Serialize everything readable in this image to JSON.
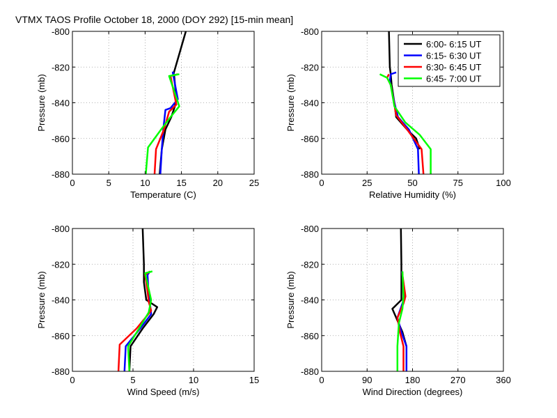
{
  "figure_title": "VTMX TAOS Profile   October 18, 2000 (DOY 292) [15-min mean]",
  "colors": {
    "6:00- 6:15 UT": "#000000",
    "6:15- 6:30 UT": "#0000ff",
    "6:30- 6:45 UT": "#ff0000",
    "6:45- 7:00 UT": "#00ff00"
  },
  "legend": {
    "placement": "top-right of relative humidity panel",
    "entries": [
      "6:00- 6:15 UT",
      "6:15- 6:30 UT",
      "6:30- 6:45 UT",
      "6:45- 7:00 UT"
    ]
  },
  "chart_data": [
    {
      "type": "line",
      "title": "",
      "xlabel": "Temperature (C)",
      "ylabel": "Pressure (mb)",
      "xlim": [
        0,
        25
      ],
      "ylim": [
        -880,
        -800
      ],
      "xticks": [
        0,
        5,
        10,
        15,
        20,
        25
      ],
      "xtick_labels": [
        "0",
        "5",
        "10",
        "15",
        "20",
        "25"
      ],
      "yticks": [
        -800,
        -820,
        -840,
        -860,
        -880
      ],
      "ytick_labels": [
        "-800",
        "-820",
        "-840",
        "-860",
        "-880"
      ],
      "grid": true,
      "series": [
        {
          "name": "6:00- 6:15 UT",
          "x": [
            12.0,
            12.3,
            12.8,
            13.6,
            14.1,
            14.3,
            14.0,
            13.9,
            15.6
          ],
          "y": [
            -880,
            -866,
            -855,
            -848,
            -842,
            -838,
            -825,
            -824,
            -800
          ]
        },
        {
          "name": "6:15- 6:30 UT",
          "x": [
            12.1,
            12.3,
            12.5,
            12.8,
            13.5,
            14.5,
            13.8,
            14.0
          ],
          "y": [
            -880,
            -866,
            -855,
            -844,
            -843,
            -838,
            -823,
            -824
          ]
        },
        {
          "name": "6:30- 6:45 UT",
          "x": [
            11.3,
            11.5,
            12.6,
            13.3,
            14.3,
            13.5,
            14.5
          ],
          "y": [
            -880,
            -866,
            -855,
            -845,
            -841,
            -825,
            -824
          ]
        },
        {
          "name": "6:45- 7:00 UT",
          "x": [
            10.1,
            10.4,
            12.2,
            13.5,
            14.7,
            13.3,
            14.7
          ],
          "y": [
            -880,
            -865,
            -855,
            -848,
            -842,
            -825,
            -824
          ]
        }
      ]
    },
    {
      "type": "line",
      "title": "",
      "xlabel": "Relative Humidity (%)",
      "ylabel": "Pressure (mb)",
      "xlim": [
        0,
        100
      ],
      "ylim": [
        -880,
        -800
      ],
      "xticks": [
        0,
        25,
        50,
        75,
        100
      ],
      "xtick_labels": [
        "0",
        "25",
        "50",
        "75",
        "100"
      ],
      "yticks": [
        -800,
        -820,
        -840,
        -860,
        -880
      ],
      "ytick_labels": [
        "-800",
        "-820",
        "-840",
        "-860",
        "-880"
      ],
      "grid": true,
      "series": [
        {
          "name": "6:00- 6:15 UT",
          "x": [
            54.0,
            52.0,
            47.0,
            41.0,
            40.0,
            38.5,
            38.0,
            37.5,
            37.0
          ],
          "y": [
            -866,
            -860,
            -855,
            -848,
            -840,
            -830,
            -824,
            -820,
            -800
          ]
        },
        {
          "name": "6:15- 6:30 UT",
          "x": [
            53.5,
            53.0,
            48.0,
            42.0,
            40.5,
            39.0,
            37.5,
            38.0,
            41.0
          ],
          "y": [
            -880,
            -866,
            -855,
            -848,
            -842,
            -835,
            -828,
            -824,
            -823
          ]
        },
        {
          "name": "6:30- 6:45 UT",
          "x": [
            56.0,
            55.0,
            47.0,
            41.0,
            40.0,
            38.0,
            36.0,
            37.0
          ],
          "y": [
            -880,
            -866,
            -855,
            -847,
            -841,
            -830,
            -826,
            -824
          ]
        },
        {
          "name": "6:45- 7:00 UT",
          "x": [
            60.0,
            60.0,
            54.0,
            46.0,
            40.0,
            38.0,
            36.0,
            32.0
          ],
          "y": [
            -880,
            -866,
            -858,
            -851,
            -842,
            -830,
            -826,
            -824
          ]
        }
      ]
    },
    {
      "type": "line",
      "title": "",
      "xlabel": "Wind Speed (m/s)",
      "ylabel": "Pressure (mb)",
      "xlim": [
        0,
        15
      ],
      "ylim": [
        -880,
        -800
      ],
      "xticks": [
        0,
        5,
        10,
        15
      ],
      "xtick_labels": [
        "0",
        "5",
        "10",
        "15"
      ],
      "yticks": [
        -800,
        -820,
        -840,
        -860,
        -880
      ],
      "ytick_labels": [
        "-800",
        "-820",
        "-840",
        "-860",
        "-880"
      ],
      "grid": true,
      "series": [
        {
          "name": "6:00- 6:15 UT",
          "x": [
            4.7,
            4.8,
            5.8,
            6.7,
            7.0,
            6.1,
            5.9,
            5.9,
            5.8
          ],
          "y": [
            -880,
            -866,
            -856,
            -848,
            -844,
            -840,
            -830,
            -820,
            -800
          ]
        },
        {
          "name": "6:15- 6:30 UT",
          "x": [
            4.3,
            4.4,
            5.6,
            6.5,
            6.4,
            6.3,
            6.2,
            6.4
          ],
          "y": [
            -880,
            -866,
            -856,
            -848,
            -842,
            -838,
            -826,
            -824
          ]
        },
        {
          "name": "6:30- 6:45 UT",
          "x": [
            3.8,
            3.9,
            5.3,
            6.5,
            6.3,
            6.2,
            6.0,
            6.4
          ],
          "y": [
            -880,
            -865,
            -856,
            -846,
            -841,
            -835,
            -826,
            -824
          ]
        },
        {
          "name": "6:45- 7:00 UT",
          "x": [
            4.7,
            4.6,
            5.5,
            6.3,
            6.5,
            6.0,
            6.6
          ],
          "y": [
            -880,
            -866,
            -856,
            -847,
            -840,
            -825,
            -824
          ]
        }
      ]
    },
    {
      "type": "line",
      "title": "",
      "xlabel": "Wind Direction (degrees)",
      "ylabel": "Pressure (mb)",
      "xlim": [
        0,
        360
      ],
      "ylim": [
        -880,
        -800
      ],
      "xticks": [
        0,
        90,
        180,
        270,
        360
      ],
      "xtick_labels": [
        "0",
        "90",
        "180",
        "270",
        "360"
      ],
      "yticks": [
        -800,
        -820,
        -840,
        -860,
        -880
      ],
      "ytick_labels": [
        "-800",
        "-820",
        "-840",
        "-860",
        "-880"
      ],
      "grid": true,
      "series": [
        {
          "name": "6:00- 6:15 UT",
          "x": [
            168,
            160,
            140,
            158,
            158,
            157
          ],
          "y": [
            -866,
            -858,
            -845,
            -840,
            -820,
            -800
          ]
        },
        {
          "name": "6:15- 6:30 UT",
          "x": [
            168,
            168,
            158,
            150,
            160,
            164,
            160,
            159
          ],
          "y": [
            -880,
            -866,
            -858,
            -850,
            -842,
            -838,
            -826,
            -824
          ]
        },
        {
          "name": "6:30- 6:45 UT",
          "x": [
            162,
            162,
            155,
            150,
            162,
            166,
            160,
            160
          ],
          "y": [
            -880,
            -866,
            -858,
            -850,
            -842,
            -838,
            -826,
            -824
          ]
        },
        {
          "name": "6:45- 7:00 UT",
          "x": [
            150,
            150,
            153,
            160,
            162,
            160
          ],
          "y": [
            -880,
            -866,
            -853,
            -845,
            -838,
            -824
          ]
        }
      ]
    }
  ]
}
